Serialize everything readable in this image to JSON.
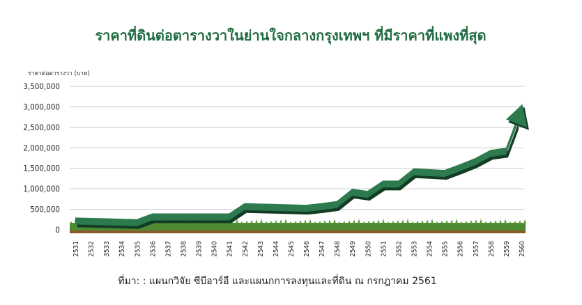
{
  "chart_data": {
    "type": "line",
    "title": "ราคาที่ดินต่อตารางวาในย่านใจกลางกรุงเทพฯ ที่มีราคาที่แพงที่สุด",
    "ylabel": "ราคาต่อตารางวา (บาท)",
    "xlabel": "",
    "source": "ที่มา: : แผนกวิจัย ซีบีอาร์อี และแผนกการลงทุนและที่ดิน ณ กรกฎาคม 2561",
    "ylim": [
      0,
      3500000
    ],
    "yticks": [
      0,
      500000,
      1000000,
      1500000,
      2000000,
      2500000,
      3000000,
      3500000
    ],
    "ytick_labels": [
      "0",
      "500,000",
      "1,000,000",
      "1,500,000",
      "2,000,000",
      "2,500,000",
      "3,000,000",
      "3,500,000"
    ],
    "categories": [
      "2531",
      "2532",
      "3533",
      "2534",
      "2535",
      "2536",
      "2537",
      "2538",
      "2539",
      "2540",
      "2541",
      "2542",
      "2543",
      "2544",
      "2545",
      "2546",
      "2547",
      "2548",
      "2549",
      "2550",
      "2551",
      "2552",
      "2553",
      "2554",
      "2555",
      "2556",
      "2557",
      "2558",
      "2559",
      "2560"
    ],
    "series": [
      {
        "values": [
          300000,
          290000,
          280000,
          270000,
          260000,
          400000,
          400000,
          400000,
          400000,
          400000,
          400000,
          650000,
          640000,
          630000,
          620000,
          610000,
          650000,
          700000,
          1000000,
          950000,
          1200000,
          1200000,
          1500000,
          1480000,
          1460000,
          1600000,
          1750000,
          1950000,
          2000000,
          3000000
        ]
      }
    ],
    "grid": true,
    "colors": {
      "line_top": "#2c7a4e",
      "line_side": "#123d24",
      "title": "#1f6b3f",
      "grass": "#4d8a32",
      "soil": "#8b5a2b",
      "grid": "#c9c9c9"
    }
  }
}
